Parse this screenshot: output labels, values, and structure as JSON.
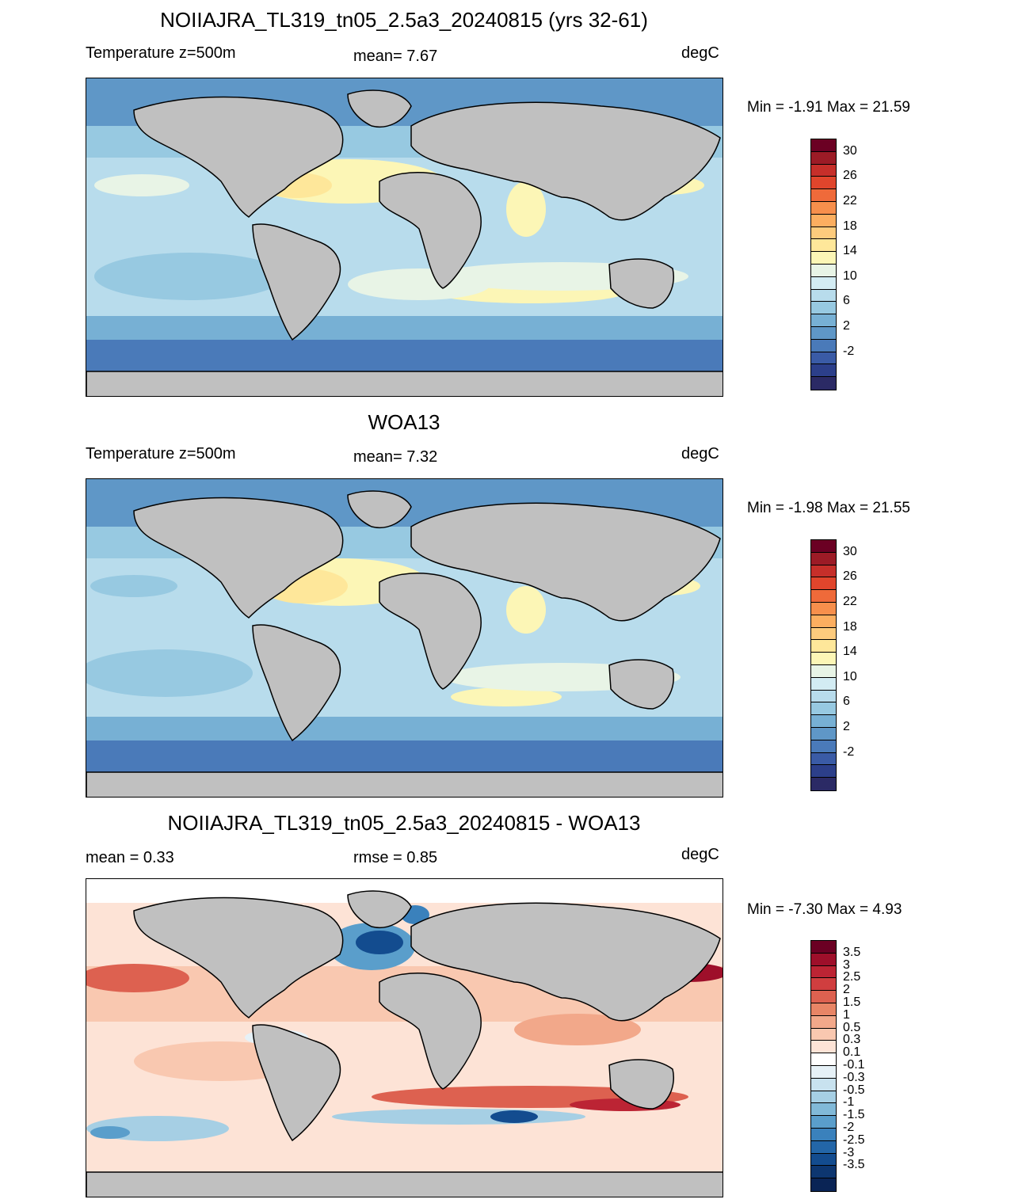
{
  "panels": [
    {
      "title": "NOIIAJRA_TL319_tn05_2.5a3_20240815 (yrs 32-61)",
      "left_label": "Temperature z=500m",
      "mid_label": "mean=   7.67",
      "units": "degC",
      "minmax": "Min =  -1.91 Max =  21.59",
      "colorbar": {
        "colors": [
          "#6b0023",
          "#9c1b26",
          "#c62f2a",
          "#e0452c",
          "#ef6a3a",
          "#f78f4c",
          "#fcae60",
          "#fdcb7d",
          "#fee79a",
          "#fcf6b6",
          "#e8f4e6",
          "#d3ecf3",
          "#b8dcec",
          "#97c9e1",
          "#77b0d4",
          "#5f97c7",
          "#4a7ab9",
          "#3a5ba6",
          "#2c3f8a",
          "#2b2a65"
        ],
        "ticks": [
          "30",
          "26",
          "22",
          "18",
          "14",
          "10",
          "6",
          "2",
          "-2"
        ]
      }
    },
    {
      "title": "WOA13",
      "left_label": "Temperature z=500m",
      "mid_label": "mean=   7.32",
      "units": "degC",
      "minmax": "Min =  -1.98 Max =  21.55",
      "colorbar": {
        "colors": [
          "#6b0023",
          "#9c1b26",
          "#c62f2a",
          "#e0452c",
          "#ef6a3a",
          "#f78f4c",
          "#fcae60",
          "#fdcb7d",
          "#fee79a",
          "#fcf6b6",
          "#e8f4e6",
          "#d3ecf3",
          "#b8dcec",
          "#97c9e1",
          "#77b0d4",
          "#5f97c7",
          "#4a7ab9",
          "#3a5ba6",
          "#2c3f8a",
          "#2b2a65"
        ],
        "ticks": [
          "30",
          "26",
          "22",
          "18",
          "14",
          "10",
          "6",
          "2",
          "-2"
        ]
      }
    },
    {
      "title": "NOIIAJRA_TL319_tn05_2.5a3_20240815 - WOA13",
      "left_label": "mean =   0.33",
      "mid_label": "rmse =   0.85",
      "units": "degC",
      "minmax": "Min =  -7.30 Max =   4.93",
      "colorbar": {
        "colors": [
          "#6b0023",
          "#9e0f2a",
          "#bc2434",
          "#d03e3f",
          "#dd6150",
          "#e88566",
          "#f2a88a",
          "#f9c8b0",
          "#fde3d6",
          "#ffffff",
          "#e6f1f7",
          "#c8e2ef",
          "#a6cfe4",
          "#81b9d8",
          "#5a9ecb",
          "#3a81bc",
          "#2366a8",
          "#134c8f",
          "#0d3670",
          "#0a2455"
        ],
        "ticks": [
          "3.5",
          "3",
          "2.5",
          "2",
          "1.5",
          "1",
          "0.5",
          "0.3",
          "0.1",
          "-0.1",
          "-0.3",
          "-0.5",
          "-1",
          "-1.5",
          "-2",
          "-2.5",
          "-3",
          "-3.5"
        ]
      }
    }
  ]
}
